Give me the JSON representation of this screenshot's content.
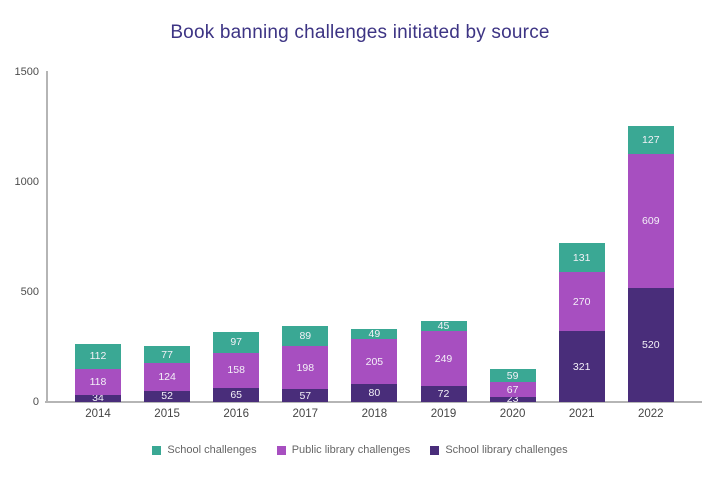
{
  "chart_data": {
    "type": "bar",
    "stacked": true,
    "title": "Book banning challenges initiated by source",
    "categories": [
      "2014",
      "2015",
      "2016",
      "2017",
      "2018",
      "2019",
      "2020",
      "2021",
      "2022"
    ],
    "series": [
      {
        "name": "School challenges",
        "color": "#3aa894",
        "values": [
          112,
          77,
          97,
          89,
          49,
          45,
          59,
          131,
          127
        ]
      },
      {
        "name": "Public library challenges",
        "color": "#a74fc0",
        "values": [
          118,
          124,
          158,
          198,
          205,
          249,
          67,
          270,
          609
        ]
      },
      {
        "name": "School library challenges",
        "color": "#492d7a",
        "values": [
          34,
          52,
          65,
          57,
          80,
          72,
          23,
          321,
          520
        ]
      }
    ],
    "stack_order_bottom_to_top": [
      "School library challenges",
      "Public library challenges",
      "School challenges"
    ],
    "totals": [
      264,
      253,
      320,
      344,
      334,
      366,
      149,
      722,
      1256
    ],
    "xlabel": "",
    "ylabel": "",
    "ylim": [
      0,
      1500
    ],
    "yticks": [
      0,
      500,
      1000,
      1500
    ],
    "grid": false,
    "legend_position": "bottom",
    "colors": {
      "title_text": "#3d3484",
      "axis_line": "#b5b5b5",
      "tick_text": "#4d4d4d",
      "segment_label_text": "#f4f1f8",
      "legend_text": "#666666",
      "background": "#ffffff"
    }
  }
}
